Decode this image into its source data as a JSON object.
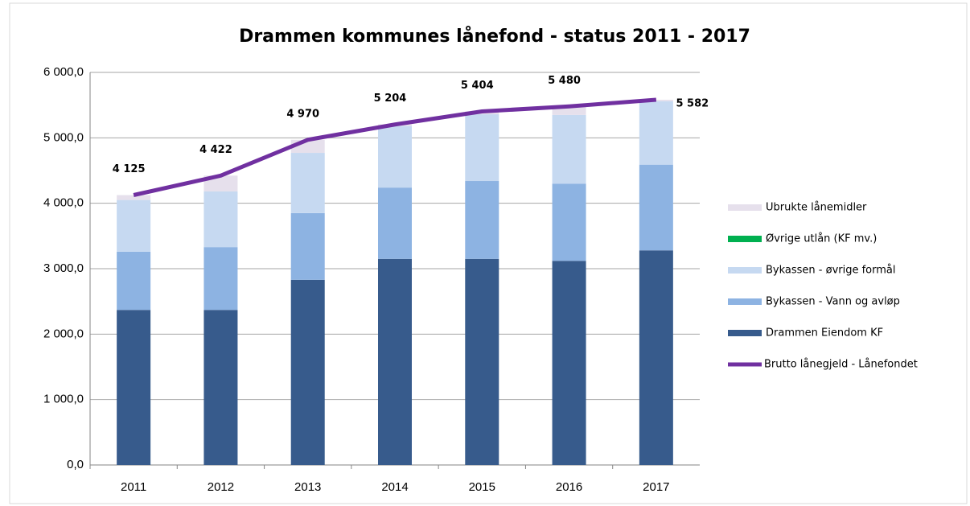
{
  "chart_data": {
    "type": "bar_line",
    "title": "Drammen kommunes lånefond - status 2011 - 2017",
    "categories": [
      "2011",
      "2012",
      "2013",
      "2014",
      "2015",
      "2016",
      "2017"
    ],
    "series": [
      {
        "name": "Drammen Eiendom KF",
        "color": "#375b8c",
        "values": [
          2370,
          2370,
          2830,
          3150,
          3150,
          3120,
          3280
        ]
      },
      {
        "name": "Bykassen - Vann og avløp",
        "color": "#8db3e2",
        "values": [
          890,
          960,
          1020,
          1090,
          1190,
          1180,
          1310
        ]
      },
      {
        "name": "Bykassen - øvrige formål",
        "color": "#c6d9f1",
        "values": [
          790,
          850,
          920,
          940,
          1020,
          1050,
          970
        ]
      },
      {
        "name": "Øvrige utlån (KF mv.)",
        "color": "#00b050",
        "values": [
          0,
          0,
          0,
          0,
          0,
          0,
          0
        ]
      },
      {
        "name": "Ubrukte lånemidler",
        "color": "#e6e0ec",
        "values": [
          75,
          242,
          200,
          24,
          44,
          130,
          22
        ]
      },
      {
        "name": "Brutto lånegjeld - Lånefondet",
        "color": "#7030a0",
        "line": true,
        "values": [
          4125,
          4422,
          4970,
          5204,
          5404,
          5480,
          5582
        ],
        "value_labels": [
          "4 125",
          "4 422",
          "4 970",
          "5 204",
          "5 404",
          "5 480",
          "5 582"
        ]
      }
    ],
    "ylim": [
      0,
      6000
    ],
    "yticks": [
      {
        "value": 0,
        "label": "0,0"
      },
      {
        "value": 1000,
        "label": "1 000,0"
      },
      {
        "value": 2000,
        "label": "2 000,0"
      },
      {
        "value": 3000,
        "label": "3 000,0"
      },
      {
        "value": 4000,
        "label": "4 000,0"
      },
      {
        "value": 5000,
        "label": "5 000,0"
      },
      {
        "value": 6000,
        "label": "6 000,0"
      }
    ],
    "grid": true
  }
}
